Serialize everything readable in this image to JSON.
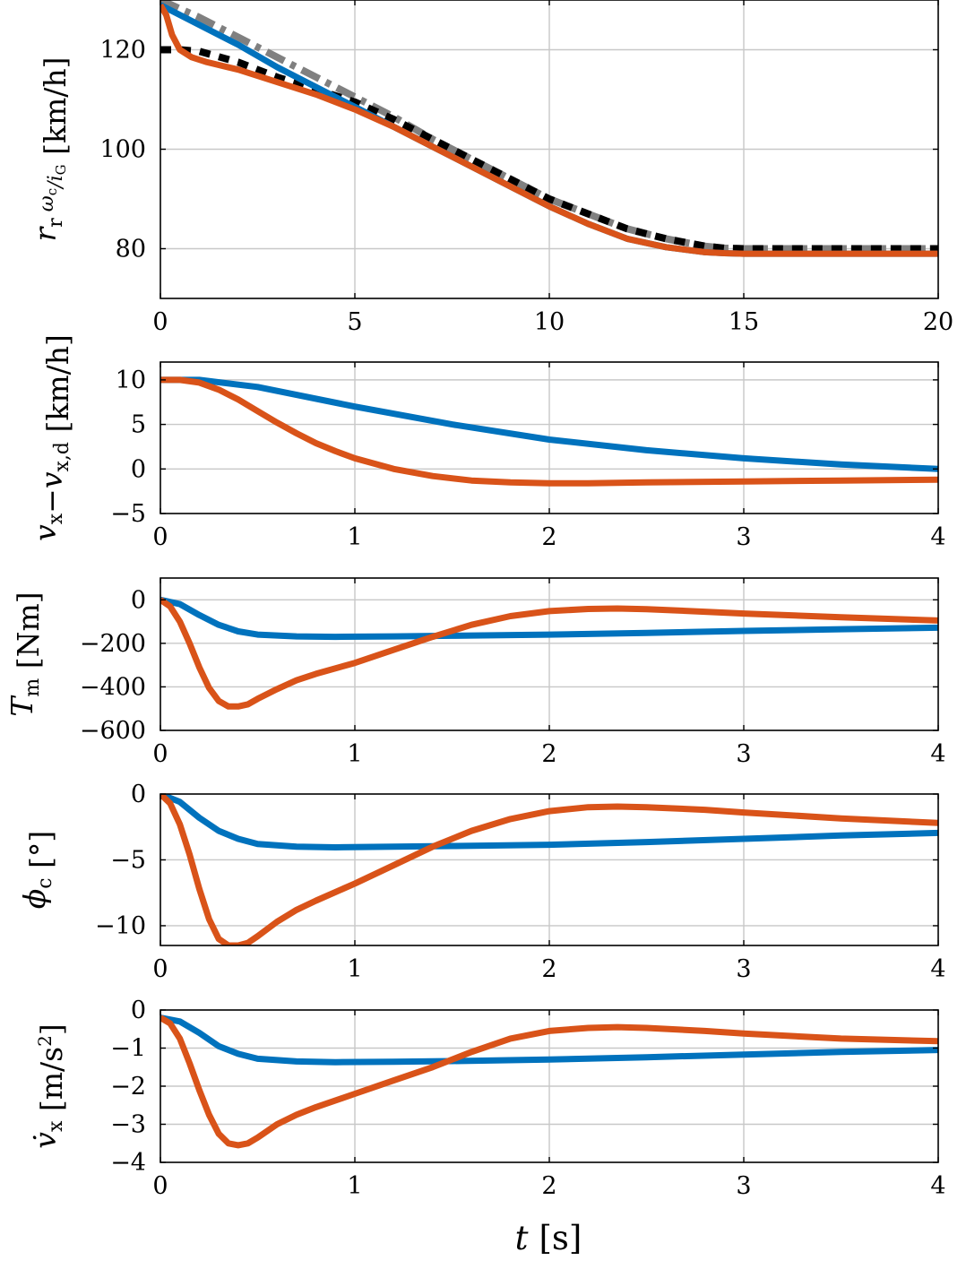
{
  "colors": {
    "blue": "#0072BD",
    "orange": "#D95319",
    "black": "#000000",
    "gray": "#808080",
    "grid": "#c8c8c8"
  },
  "figure": {
    "xlabel": {
      "sym": "t",
      "unit": "[s]"
    }
  },
  "chart_data": [
    {
      "type": "line",
      "ylabel": {
        "sym": "r",
        "sub": "r",
        "frac_num": "ω",
        "frac_num_sub": "c",
        "frac_den": "i",
        "frac_den_sub": "G",
        "unit": "[km/h]"
      },
      "xlim": [
        0,
        20
      ],
      "ylim": [
        70,
        130
      ],
      "xticks": [
        0,
        5,
        10,
        15,
        20
      ],
      "yticks": [
        80,
        100,
        120
      ],
      "grid": true,
      "series": [
        {
          "style": "gray-dashdot",
          "color": "#808080",
          "x": [
            0,
            1,
            2,
            3,
            4,
            5,
            6,
            7,
            8,
            9,
            10,
            11,
            12,
            13,
            14,
            14.5,
            15,
            16,
            18,
            20
          ],
          "y": [
            130,
            126.5,
            122.5,
            118.5,
            114.5,
            110.5,
            106.5,
            102,
            98,
            94,
            90,
            87,
            84,
            82,
            80.5,
            80.1,
            80,
            80,
            80,
            80
          ]
        },
        {
          "style": "black-dashed",
          "color": "#000000",
          "x": [
            0,
            0.5,
            1,
            2,
            3,
            4,
            5,
            6,
            7,
            8,
            9,
            10,
            11,
            12,
            13,
            14,
            14.5,
            15,
            16,
            18,
            20
          ],
          "y": [
            120,
            120,
            119.7,
            117.5,
            114.5,
            112,
            109.5,
            106,
            102,
            98,
            94,
            90,
            87,
            84,
            82,
            80.5,
            80.1,
            80,
            80,
            80,
            80
          ]
        },
        {
          "style": "blue-solid",
          "color": "#0072BD",
          "x": [
            0,
            1,
            2,
            3,
            4,
            5,
            6,
            7,
            8,
            9,
            10,
            11,
            12,
            13,
            14,
            14.5,
            15,
            16,
            18,
            20
          ],
          "y": [
            129,
            125,
            121,
            116.5,
            112.5,
            108.5,
            104.5,
            100.5,
            96.5,
            92.5,
            88.5,
            85,
            82,
            80.3,
            79.3,
            79.1,
            79,
            79,
            79,
            79
          ]
        },
        {
          "style": "orange-solid",
          "color": "#D95319",
          "x": [
            0,
            0.15,
            0.3,
            0.5,
            0.8,
            1.2,
            2,
            3,
            4,
            5,
            6,
            7,
            8,
            9,
            10,
            11,
            12,
            13,
            14,
            14.5,
            15,
            16,
            18,
            20
          ],
          "y": [
            129,
            127,
            123,
            120,
            118.5,
            117.5,
            116,
            113.5,
            111,
            108,
            104.5,
            100.5,
            96.5,
            92.5,
            88.5,
            85,
            82,
            80.3,
            79.3,
            79.1,
            79,
            79,
            79,
            79
          ]
        }
      ]
    },
    {
      "type": "line",
      "ylabel": {
        "sym": "v",
        "sub": "x",
        "op": "−",
        "sym2": "v",
        "sub2": "x,d",
        "unit": "[km/h]"
      },
      "xlim": [
        0,
        4
      ],
      "ylim": [
        -5,
        12
      ],
      "xticks": [
        0,
        1,
        2,
        3,
        4
      ],
      "yticks": [
        -5,
        0,
        5,
        10
      ],
      "grid": true,
      "series": [
        {
          "style": "blue-solid",
          "color": "#0072BD",
          "x": [
            0,
            0.2,
            0.5,
            1,
            1.5,
            2,
            2.5,
            3,
            3.5,
            4
          ],
          "y": [
            10,
            10,
            9.2,
            7,
            5,
            3.3,
            2.1,
            1.2,
            0.5,
            0
          ]
        },
        {
          "style": "orange-solid",
          "color": "#D95319",
          "x": [
            0,
            0.1,
            0.2,
            0.3,
            0.4,
            0.5,
            0.6,
            0.7,
            0.8,
            0.9,
            1,
            1.2,
            1.4,
            1.6,
            1.8,
            2,
            2.2,
            2.5,
            3,
            3.5,
            4
          ],
          "y": [
            10,
            10,
            9.7,
            8.9,
            7.8,
            6.5,
            5.2,
            4,
            2.9,
            2,
            1.2,
            0,
            -0.8,
            -1.3,
            -1.5,
            -1.6,
            -1.6,
            -1.5,
            -1.4,
            -1.3,
            -1.2
          ]
        }
      ]
    },
    {
      "type": "line",
      "ylabel": {
        "sym": "T",
        "sub": "m",
        "unit": "[Nm]"
      },
      "xlim": [
        0,
        4
      ],
      "ylim": [
        -600,
        100
      ],
      "xticks": [
        0,
        1,
        2,
        3,
        4
      ],
      "yticks": [
        -600,
        -400,
        -200,
        0
      ],
      "grid": true,
      "series": [
        {
          "style": "blue-solid",
          "color": "#0072BD",
          "x": [
            0,
            0.1,
            0.2,
            0.3,
            0.4,
            0.5,
            0.7,
            0.9,
            1.2,
            1.5,
            2,
            2.5,
            3,
            3.5,
            4
          ],
          "y": [
            0,
            -20,
            -70,
            -115,
            -145,
            -160,
            -168,
            -170,
            -168,
            -165,
            -160,
            -152,
            -143,
            -135,
            -128
          ]
        },
        {
          "style": "orange-solid",
          "color": "#D95319",
          "x": [
            0,
            0.05,
            0.1,
            0.15,
            0.2,
            0.25,
            0.3,
            0.35,
            0.4,
            0.45,
            0.5,
            0.6,
            0.7,
            0.8,
            1,
            1.2,
            1.4,
            1.6,
            1.8,
            2,
            2.2,
            2.35,
            2.5,
            2.8,
            3,
            3.5,
            4
          ],
          "y": [
            0,
            -30,
            -100,
            -200,
            -310,
            -405,
            -465,
            -490,
            -490,
            -480,
            -455,
            -410,
            -370,
            -340,
            -290,
            -230,
            -170,
            -115,
            -75,
            -52,
            -42,
            -40,
            -43,
            -55,
            -63,
            -80,
            -95
          ]
        }
      ]
    },
    {
      "type": "line",
      "ylabel": {
        "sym": "ϕ",
        "sub": "c",
        "unit": "[°]"
      },
      "xlim": [
        0,
        4
      ],
      "ylim": [
        -11.5,
        0
      ],
      "xticks": [
        0,
        1,
        2,
        3,
        4
      ],
      "yticks": [
        -10,
        -5,
        0
      ],
      "grid": true,
      "series": [
        {
          "style": "blue-solid",
          "color": "#0072BD",
          "x": [
            0,
            0.1,
            0.2,
            0.3,
            0.4,
            0.5,
            0.7,
            0.9,
            1.2,
            1.5,
            2,
            2.5,
            3,
            3.5,
            4
          ],
          "y": [
            0,
            -0.6,
            -1.8,
            -2.8,
            -3.4,
            -3.8,
            -4,
            -4.05,
            -4,
            -3.95,
            -3.85,
            -3.65,
            -3.4,
            -3.15,
            -2.95
          ]
        },
        {
          "style": "orange-solid",
          "color": "#D95319",
          "x": [
            0,
            0.05,
            0.1,
            0.15,
            0.2,
            0.25,
            0.3,
            0.35,
            0.4,
            0.45,
            0.5,
            0.6,
            0.7,
            0.8,
            1,
            1.2,
            1.4,
            1.6,
            1.8,
            2,
            2.2,
            2.35,
            2.5,
            2.8,
            3,
            3.5,
            4
          ],
          "y": [
            0,
            -0.7,
            -2.3,
            -4.6,
            -7.2,
            -9.5,
            -11,
            -11.5,
            -11.5,
            -11.3,
            -10.8,
            -9.7,
            -8.8,
            -8.1,
            -6.8,
            -5.4,
            -4,
            -2.8,
            -1.9,
            -1.3,
            -1,
            -0.95,
            -1,
            -1.2,
            -1.4,
            -1.85,
            -2.2
          ]
        }
      ]
    },
    {
      "type": "line",
      "ylabel": {
        "sym": "v̇",
        "sub": "x",
        "unit": "[m/s",
        "unit_sup": "2",
        "unit_end": "]"
      },
      "xlim": [
        0,
        4
      ],
      "ylim": [
        -4,
        0
      ],
      "xticks": [
        0,
        1,
        2,
        3,
        4
      ],
      "yticks": [
        -4,
        -3,
        -2,
        -1,
        0
      ],
      "grid": true,
      "series": [
        {
          "style": "blue-solid",
          "color": "#0072BD",
          "x": [
            0,
            0.1,
            0.2,
            0.3,
            0.4,
            0.5,
            0.7,
            0.9,
            1.2,
            1.5,
            2,
            2.5,
            3,
            3.5,
            4
          ],
          "y": [
            -0.2,
            -0.3,
            -0.6,
            -0.95,
            -1.15,
            -1.28,
            -1.35,
            -1.37,
            -1.36,
            -1.34,
            -1.3,
            -1.24,
            -1.17,
            -1.1,
            -1.05
          ]
        },
        {
          "style": "orange-solid",
          "color": "#D95319",
          "x": [
            0,
            0.05,
            0.1,
            0.15,
            0.2,
            0.25,
            0.3,
            0.35,
            0.4,
            0.45,
            0.5,
            0.6,
            0.7,
            0.8,
            1,
            1.2,
            1.4,
            1.6,
            1.8,
            2,
            2.2,
            2.35,
            2.5,
            2.8,
            3,
            3.5,
            4
          ],
          "y": [
            -0.2,
            -0.35,
            -0.75,
            -1.4,
            -2.1,
            -2.75,
            -3.25,
            -3.5,
            -3.55,
            -3.5,
            -3.35,
            -3,
            -2.75,
            -2.55,
            -2.2,
            -1.85,
            -1.5,
            -1.1,
            -0.75,
            -0.55,
            -0.47,
            -0.45,
            -0.47,
            -0.55,
            -0.62,
            -0.75,
            -0.82
          ]
        }
      ]
    }
  ]
}
